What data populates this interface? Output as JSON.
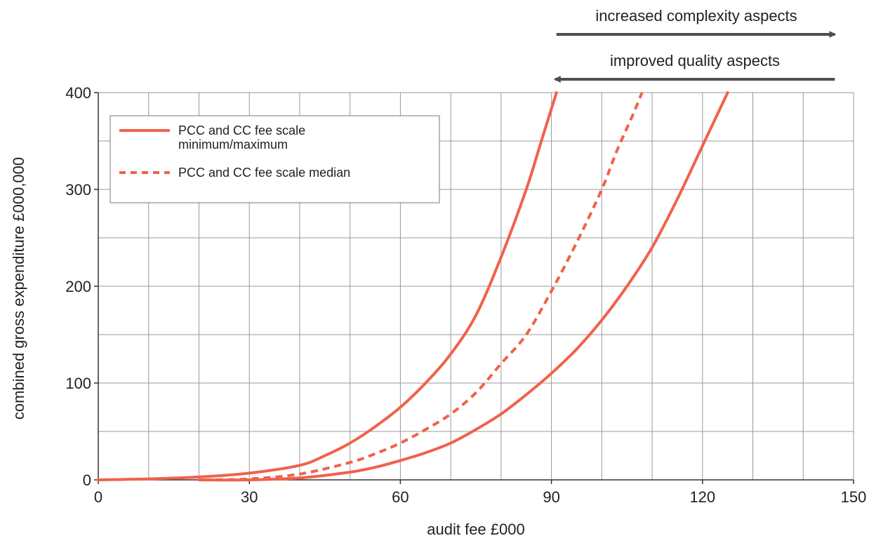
{
  "chart_data": {
    "type": "line",
    "title": "",
    "xlabel": "audit fee £000",
    "ylabel": "combined gross expenditure £000,000",
    "xlim": [
      0,
      150
    ],
    "ylim": [
      0,
      400
    ],
    "x_ticks": [
      0,
      30,
      60,
      90,
      120,
      150
    ],
    "y_ticks": [
      0,
      100,
      200,
      300,
      400
    ],
    "x_tick_labels": [
      "0",
      "30",
      "60",
      "90",
      "120",
      "150"
    ],
    "y_tick_labels": [
      "0",
      "100",
      "200",
      "300",
      "400"
    ],
    "grid": true,
    "legend_position": "top-left",
    "colors": {
      "series": "#f0624a",
      "arrow": "#4a4f55",
      "grid": "#999999"
    },
    "legend": [
      {
        "label_line1": "PCC and CC fee scale",
        "label_line2": "minimum/maximum",
        "style": "solid"
      },
      {
        "label_line1": "PCC and CC fee scale median",
        "label_line2": "",
        "style": "dashed"
      }
    ],
    "series": [
      {
        "style": "solid",
        "x": [
          0,
          10,
          20,
          30,
          40,
          45,
          50,
          55,
          60,
          65,
          70,
          75,
          80,
          85,
          88,
          91
        ],
        "y": [
          0,
          1,
          3,
          7,
          15,
          25,
          38,
          55,
          75,
          100,
          130,
          170,
          230,
          300,
          350,
          400
        ]
      },
      {
        "style": "solid",
        "x": [
          20,
          30,
          40,
          50,
          55,
          60,
          65,
          70,
          75,
          80,
          85,
          90,
          95,
          100,
          105,
          110,
          115,
          120,
          125
        ],
        "y": [
          0,
          0,
          2,
          8,
          13,
          20,
          28,
          38,
          52,
          68,
          88,
          110,
          135,
          165,
          200,
          240,
          290,
          345,
          400
        ]
      },
      {
        "style": "dashed",
        "x": [
          21,
          30,
          40,
          50,
          55,
          60,
          65,
          70,
          75,
          80,
          85,
          90,
          95,
          100,
          103,
          106,
          108
        ],
        "y": [
          0,
          1,
          6,
          18,
          27,
          38,
          52,
          68,
          90,
          120,
          150,
          195,
          245,
          300,
          340,
          375,
          400
        ]
      }
    ],
    "annotations": [
      {
        "text": "increased complexity aspects",
        "direction": "right",
        "x_from": 91,
        "x_to": 146
      },
      {
        "text": "improved quality aspects",
        "direction": "left",
        "x_from": 146,
        "x_to": 91
      }
    ]
  }
}
